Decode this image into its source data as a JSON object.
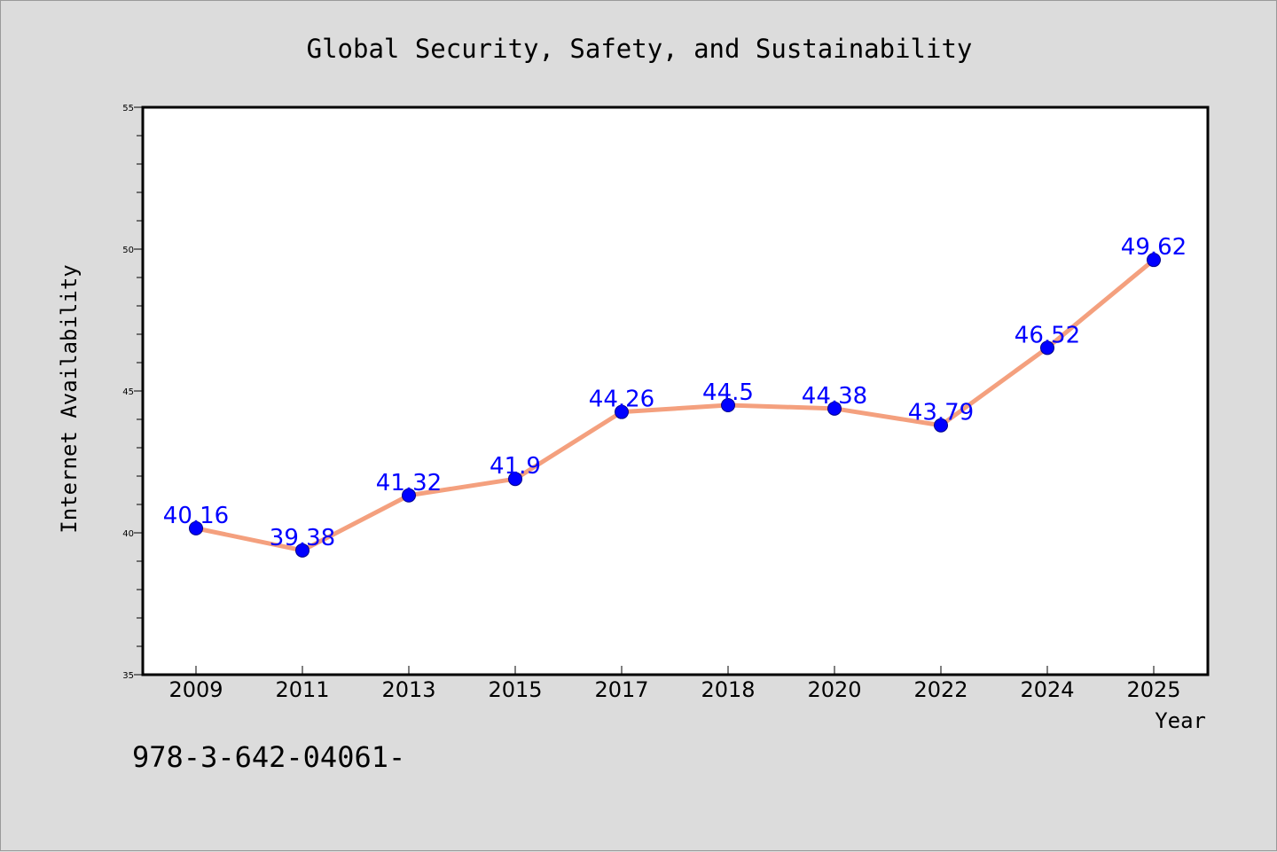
{
  "chart_data": {
    "type": "line",
    "title": "Global Security, Safety, and Sustainability",
    "xlabel": "Year",
    "ylabel": "Internet Availability",
    "categories": [
      "2009",
      "2011",
      "2013",
      "2015",
      "2017",
      "2018",
      "2020",
      "2022",
      "2024",
      "2025"
    ],
    "series": [
      {
        "values": [
          40.16,
          39.38,
          41.32,
          41.9,
          44.26,
          44.5,
          44.38,
          43.79,
          46.52,
          49.62
        ],
        "labels": [
          "40.16",
          "39.38",
          "41.32",
          "41.9",
          "44.26",
          "44.5",
          "44.38",
          "43.79",
          "46.52",
          "49.62"
        ],
        "line_color": "#f4a07e",
        "marker_color": "#0000ff",
        "label_color": "#0000ff"
      }
    ],
    "ylim": [
      35,
      55
    ],
    "yticks": [
      "35",
      "40",
      "45",
      "50",
      "55"
    ],
    "grid": false,
    "legend": "none"
  },
  "footnote": "978-3-642-04061-"
}
